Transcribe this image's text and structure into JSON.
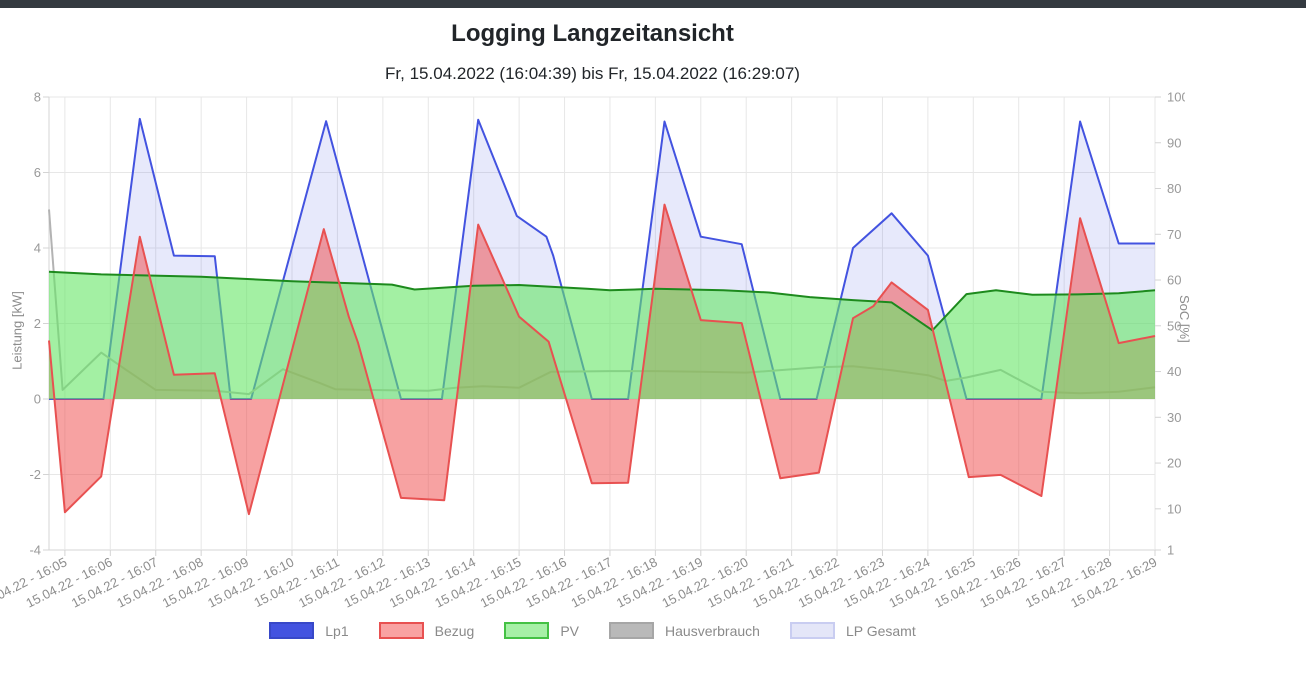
{
  "topbar": {
    "color": "#343a40"
  },
  "header": {
    "title": "Logging Langzeitansicht",
    "subtitle": "Fr, 15.04.2022 (16:04:39) bis Fr, 15.04.2022 (16:29:07)"
  },
  "colors": {
    "background": "#ffffff",
    "grid": "#e7e7e7",
    "axis_line": "#d4d4d4",
    "tick_text": "#999999",
    "x_label_text": "#8d8d8d"
  },
  "chart_data": {
    "type": "area",
    "x_unit": "minutes after 16:00, 15.04.22",
    "x_range": [
      4.65,
      29
    ],
    "x_ticks": [
      {
        "t": 5,
        "label": "15.04.22 - 16:05"
      },
      {
        "t": 6,
        "label": "15.04.22 - 16:06"
      },
      {
        "t": 7,
        "label": "15.04.22 - 16:07"
      },
      {
        "t": 8,
        "label": "15.04.22 - 16:08"
      },
      {
        "t": 9,
        "label": "15.04.22 - 16:09"
      },
      {
        "t": 10,
        "label": "15.04.22 - 16:10"
      },
      {
        "t": 11,
        "label": "15.04.22 - 16:11"
      },
      {
        "t": 12,
        "label": "15.04.22 - 16:12"
      },
      {
        "t": 13,
        "label": "15.04.22 - 16:13"
      },
      {
        "t": 14,
        "label": "15.04.22 - 16:14"
      },
      {
        "t": 15,
        "label": "15.04.22 - 16:15"
      },
      {
        "t": 16,
        "label": "15.04.22 - 16:16"
      },
      {
        "t": 17,
        "label": "15.04.22 - 16:17"
      },
      {
        "t": 18,
        "label": "15.04.22 - 16:18"
      },
      {
        "t": 19,
        "label": "15.04.22 - 16:19"
      },
      {
        "t": 20,
        "label": "15.04.22 - 16:20"
      },
      {
        "t": 21,
        "label": "15.04.22 - 16:21"
      },
      {
        "t": 22,
        "label": "15.04.22 - 16:22"
      },
      {
        "t": 23,
        "label": "15.04.22 - 16:23"
      },
      {
        "t": 24,
        "label": "15.04.22 - 16:24"
      },
      {
        "t": 25,
        "label": "15.04.22 - 16:25"
      },
      {
        "t": 26,
        "label": "15.04.22 - 16:26"
      },
      {
        "t": 27,
        "label": "15.04.22 - 16:27"
      },
      {
        "t": 28,
        "label": "15.04.22 - 16:28"
      },
      {
        "t": 29,
        "label": "15.04.22 - 16:29"
      }
    ],
    "y_left": {
      "title": "Leistung [kW]",
      "min": -4,
      "max": 8,
      "ticks": [
        8,
        6,
        4,
        2,
        0,
        -2,
        -4
      ]
    },
    "y_right": {
      "title": "SoC [%]",
      "min": 1,
      "max": 100,
      "ticks": [
        100,
        90,
        80,
        70,
        60,
        50,
        40,
        30,
        20,
        10,
        1
      ]
    },
    "series": [
      {
        "name": "Lp1",
        "line": "#4353e0",
        "width": 2,
        "fill": null,
        "data": [
          [
            4.65,
            0
          ],
          [
            5.85,
            0
          ],
          [
            6.65,
            7.42
          ],
          [
            7.4,
            3.8
          ],
          [
            8.3,
            3.78
          ],
          [
            8.65,
            0
          ],
          [
            9.1,
            0
          ],
          [
            10.75,
            7.36
          ],
          [
            11.55,
            3.79
          ],
          [
            12.4,
            0
          ],
          [
            13.3,
            0
          ],
          [
            14.1,
            7.4
          ],
          [
            14.95,
            4.85
          ],
          [
            15.6,
            4.3
          ],
          [
            15.75,
            3.8
          ],
          [
            16.6,
            0
          ],
          [
            17.4,
            0
          ],
          [
            18.2,
            7.35
          ],
          [
            19.0,
            4.3
          ],
          [
            19.9,
            4.1
          ],
          [
            20.75,
            0
          ],
          [
            21.55,
            0
          ],
          [
            22.35,
            4.0
          ],
          [
            23.2,
            4.92
          ],
          [
            24.0,
            3.8
          ],
          [
            24.85,
            0
          ],
          [
            26.5,
            0
          ],
          [
            27.35,
            7.35
          ],
          [
            28.2,
            4.12
          ],
          [
            29.0,
            4.12
          ]
        ]
      },
      {
        "name": "Bezug",
        "line": "#e85151",
        "width": 2,
        "fill": "rgba(240,70,70,0.5)",
        "data": [
          [
            4.65,
            1.55
          ],
          [
            5.0,
            -3.0
          ],
          [
            5.8,
            -2.05
          ],
          [
            6.65,
            4.3
          ],
          [
            7.4,
            0.64
          ],
          [
            8.3,
            0.68
          ],
          [
            9.05,
            -3.05
          ],
          [
            10.7,
            4.5
          ],
          [
            11.25,
            2.18
          ],
          [
            11.45,
            1.5
          ],
          [
            12.4,
            -2.62
          ],
          [
            13.35,
            -2.68
          ],
          [
            14.1,
            4.62
          ],
          [
            15.0,
            2.18
          ],
          [
            15.65,
            1.52
          ],
          [
            16.6,
            -2.23
          ],
          [
            17.4,
            -2.22
          ],
          [
            18.2,
            5.15
          ],
          [
            19.0,
            2.09
          ],
          [
            19.9,
            2.01
          ],
          [
            20.75,
            -2.1
          ],
          [
            21.6,
            -1.95
          ],
          [
            22.35,
            2.14
          ],
          [
            22.8,
            2.46
          ],
          [
            23.2,
            3.09
          ],
          [
            24.0,
            2.36
          ],
          [
            24.9,
            -2.07
          ],
          [
            25.6,
            -2.01
          ],
          [
            26.5,
            -2.57
          ],
          [
            27.35,
            4.79
          ],
          [
            28.2,
            1.48
          ],
          [
            29.0,
            1.67
          ]
        ]
      },
      {
        "name": "PV",
        "line": "#1d8a1d",
        "width": 2,
        "fill": "rgba(102,230,102,0.6)",
        "data": [
          [
            4.65,
            3.37
          ],
          [
            5.8,
            3.3
          ],
          [
            8.0,
            3.24
          ],
          [
            10.0,
            3.12
          ],
          [
            12.2,
            3.03
          ],
          [
            12.7,
            2.9
          ],
          [
            14.0,
            3.0
          ],
          [
            15.0,
            3.02
          ],
          [
            16.5,
            2.92
          ],
          [
            17.0,
            2.88
          ],
          [
            18.0,
            2.92
          ],
          [
            19.5,
            2.88
          ],
          [
            20.5,
            2.82
          ],
          [
            21.4,
            2.7
          ],
          [
            22.35,
            2.62
          ],
          [
            23.2,
            2.56
          ],
          [
            24.1,
            1.82
          ],
          [
            24.85,
            2.78
          ],
          [
            25.5,
            2.88
          ],
          [
            26.3,
            2.76
          ],
          [
            27.3,
            2.77
          ],
          [
            28.2,
            2.8
          ],
          [
            29.0,
            2.88
          ]
        ]
      },
      {
        "name": "Hausverbrauch",
        "line": "#b3b3b3",
        "width": 2,
        "fill": null,
        "data": [
          [
            4.65,
            5.02
          ],
          [
            4.95,
            0.24
          ],
          [
            5.8,
            1.23
          ],
          [
            6.35,
            0.77
          ],
          [
            7.0,
            0.24
          ],
          [
            8.3,
            0.22
          ],
          [
            9.05,
            0.13
          ],
          [
            9.8,
            0.79
          ],
          [
            10.6,
            0.43
          ],
          [
            10.95,
            0.26
          ],
          [
            11.6,
            0.24
          ],
          [
            13.0,
            0.22
          ],
          [
            13.6,
            0.3
          ],
          [
            14.2,
            0.34
          ],
          [
            15.0,
            0.3
          ],
          [
            15.7,
            0.72
          ],
          [
            17.0,
            0.74
          ],
          [
            18.0,
            0.74
          ],
          [
            19.0,
            0.72
          ],
          [
            20.0,
            0.7
          ],
          [
            21.6,
            0.84
          ],
          [
            22.35,
            0.87
          ],
          [
            23.2,
            0.76
          ],
          [
            24.0,
            0.63
          ],
          [
            24.4,
            0.48
          ],
          [
            24.85,
            0.57
          ],
          [
            25.6,
            0.77
          ],
          [
            26.5,
            0.19
          ],
          [
            27.35,
            0.15
          ],
          [
            28.2,
            0.19
          ],
          [
            29.0,
            0.31
          ]
        ]
      },
      {
        "name": "LP Gesamt",
        "line": null,
        "width": 0,
        "fill": "rgba(67,83,224,0.13)",
        "data": [
          [
            4.65,
            0
          ],
          [
            5.85,
            0
          ],
          [
            6.65,
            7.42
          ],
          [
            7.4,
            3.8
          ],
          [
            8.3,
            3.78
          ],
          [
            8.65,
            0
          ],
          [
            9.1,
            0
          ],
          [
            10.75,
            7.36
          ],
          [
            11.55,
            3.79
          ],
          [
            12.4,
            0
          ],
          [
            13.3,
            0
          ],
          [
            14.1,
            7.4
          ],
          [
            14.95,
            4.85
          ],
          [
            15.6,
            4.3
          ],
          [
            15.75,
            3.8
          ],
          [
            16.6,
            0
          ],
          [
            17.4,
            0
          ],
          [
            18.2,
            7.35
          ],
          [
            19.0,
            4.3
          ],
          [
            19.9,
            4.1
          ],
          [
            20.75,
            0
          ],
          [
            21.55,
            0
          ],
          [
            22.35,
            4.0
          ],
          [
            23.2,
            4.92
          ],
          [
            24.0,
            3.8
          ],
          [
            24.85,
            0
          ],
          [
            26.5,
            0
          ],
          [
            27.35,
            7.35
          ],
          [
            28.2,
            4.12
          ],
          [
            29.0,
            4.12
          ]
        ]
      }
    ]
  },
  "legend": {
    "items": [
      {
        "label": "Lp1",
        "fill": "#4353e0",
        "border": "#3848c8"
      },
      {
        "label": "Bezug",
        "fill": "#f9a2a2",
        "border": "#e85151"
      },
      {
        "label": "PV",
        "fill": "#a6f0a6",
        "border": "#44c144"
      },
      {
        "label": "Hausverbrauch",
        "fill": "#b9b9b9",
        "border": "#a6a6a6"
      },
      {
        "label": "LP Gesamt",
        "fill": "#e4e6f8",
        "border": "#c9cdf1"
      }
    ]
  }
}
